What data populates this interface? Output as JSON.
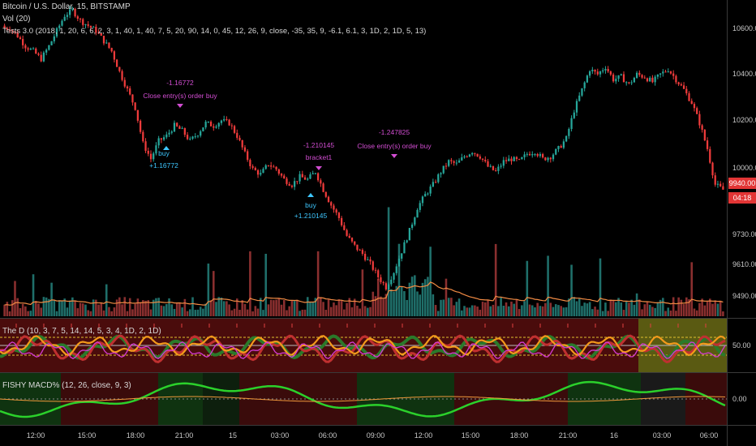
{
  "header": {
    "symbol": "Bitcoin / U.S. Dollar, 15, BITSTAMP",
    "vol": "Vol (20)",
    "strategy": "Tests 3.0 (2018, 1, 20, 6, 6, 2, 3, 1, 40, 1, 40, 7, 5, 20, 90, 14, 0, 45, 12, 26, 9, close, -35, 35, 9, -6.1, 6.1, 3, 1D, 2, 1D, 5, 13)"
  },
  "price_pane": {
    "y_ticks": [
      "10600.00",
      "10400.00",
      "10200.00",
      "10000.00",
      "9730.00",
      "9610.00",
      "9490.00"
    ],
    "last_price": "9940.00",
    "countdown": "04:18",
    "colors": {
      "up": "#26a69a",
      "down": "#ef3b3b",
      "volume_ma": "#f28b44"
    },
    "annotations": [
      {
        "id": "a1",
        "text": "-1.16772",
        "color": "#d24dd2"
      },
      {
        "id": "a2",
        "text": "Close entry(s) order buy",
        "color": "#d24dd2"
      },
      {
        "id": "a3",
        "text": "buy",
        "color": "#3ec7ff"
      },
      {
        "id": "a4",
        "text": "+1.16772",
        "color": "#3ec7ff"
      },
      {
        "id": "a5",
        "text": "-1.210145",
        "color": "#d24dd2"
      },
      {
        "id": "a6",
        "text": "bracket1",
        "color": "#d24dd2"
      },
      {
        "id": "a7",
        "text": "buy",
        "color": "#3ec7ff"
      },
      {
        "id": "a8",
        "text": "+1.210145",
        "color": "#3ec7ff"
      },
      {
        "id": "a9",
        "text": "-1.247825",
        "color": "#d24dd2"
      },
      {
        "id": "a10",
        "text": "Close entry(s) order buy",
        "color": "#d24dd2"
      }
    ]
  },
  "pane2": {
    "title": "The D (10, 3, 7, 5, 14, 14, 5, 3, 4, 1D, 2, 1D)",
    "tick": "50.00"
  },
  "pane3": {
    "title": "FISHY MACD% (12, 26, close, 9, 3)",
    "tick": "0.00"
  },
  "x_axis": {
    "ticks": [
      "12:00",
      "15:00",
      "18:00",
      "21:00",
      "15",
      "03:00",
      "06:00",
      "09:00",
      "12:00",
      "15:00",
      "18:00",
      "21:00",
      "16",
      "03:00",
      "06:00"
    ]
  },
  "chart_data": {
    "type": "candlestick",
    "title": "Bitcoin / U.S. Dollar, 15, BITSTAMP",
    "ylim": [
      9440,
      10680
    ],
    "close_series": [
      10570,
      10540,
      10500,
      10480,
      10450,
      10500,
      10560,
      10620,
      10640,
      10600,
      10580,
      10560,
      10520,
      10480,
      10400,
      10330,
      10260,
      10120,
      10060,
      10130,
      10150,
      10190,
      10170,
      10130,
      10160,
      10200,
      10190,
      10210,
      10200,
      10150,
      10080,
      10020,
      10000,
      10040,
      10020,
      9980,
      9960,
      9990,
      9980,
      10010,
      9940,
      9880,
      9830,
      9760,
      9720,
      9690,
      9650,
      9600,
      9560,
      9620,
      9700,
      9780,
      9870,
      9920,
      9960,
      10010,
      10050,
      10040,
      10070,
      10090,
      10070,
      10030,
      10010,
      10050,
      10060,
      10050,
      10080,
      10090,
      10060,
      10070,
      10100,
      10140,
      10250,
      10330,
      10410,
      10390,
      10420,
      10370,
      10380,
      10350,
      10390,
      10380,
      10360,
      10390,
      10410,
      10370,
      10330,
      10280,
      10200,
      10100,
      9960,
      9940
    ]
  }
}
